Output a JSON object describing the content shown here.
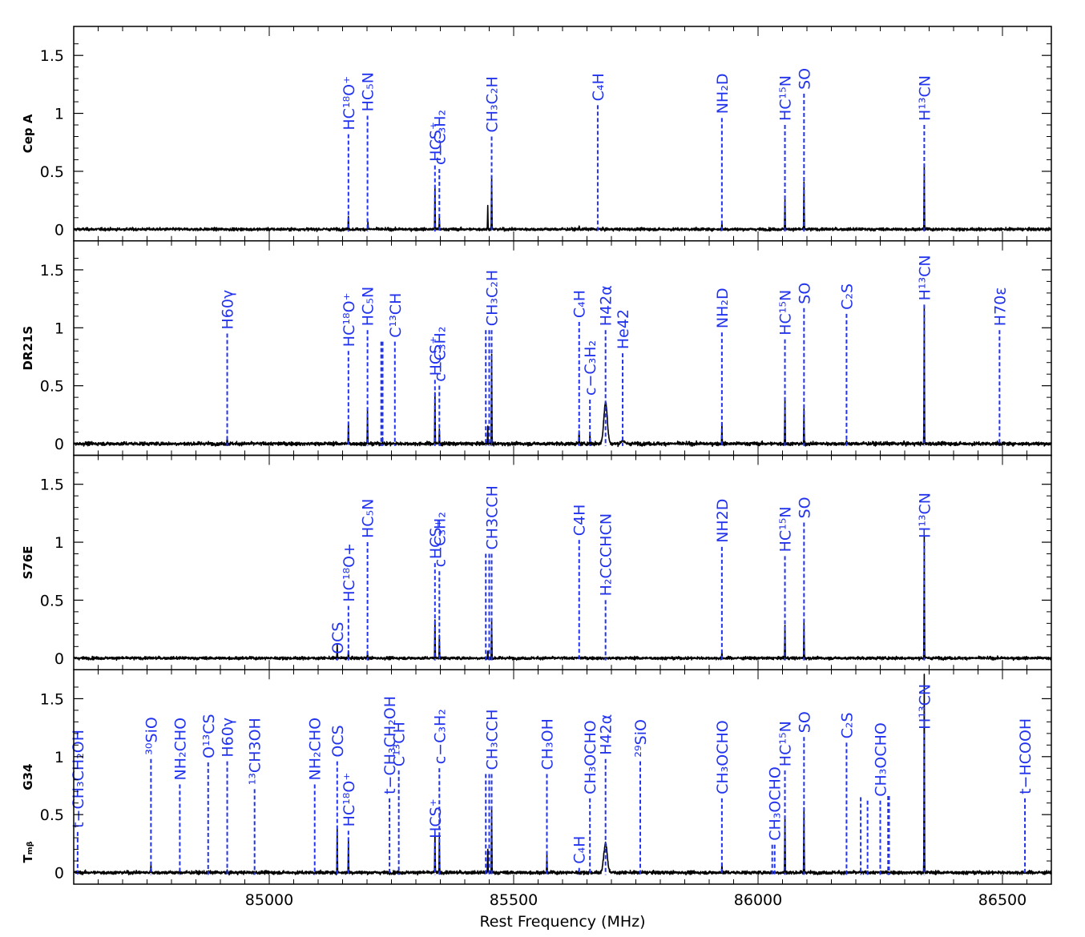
{
  "chart_data": {
    "type": "line",
    "xlabel": "Rest Frequency (MHz)",
    "xlim": [
      84600,
      86600
    ],
    "x_ticks": [
      85000,
      85500,
      86000,
      86500
    ],
    "ylim": [
      -0.1,
      1.75
    ],
    "y_ticks": [
      0,
      0.5,
      1,
      1.5
    ],
    "y_tick_labels": [
      "0",
      "0.5",
      "1",
      "1.5"
    ],
    "colors": {
      "spectrum": "#000000",
      "marker": "#2233ee",
      "frame": "#000000"
    },
    "grid": false,
    "panels": [
      {
        "name": "Cep A",
        "noise": 0.012,
        "peaks": [
          {
            "x": 85162,
            "y": 0.12
          },
          {
            "x": 85202,
            "y": 0.06
          },
          {
            "x": 85339,
            "y": 0.36
          },
          {
            "x": 85348,
            "y": 0.1
          },
          {
            "x": 85447,
            "y": 0.2
          },
          {
            "x": 85455,
            "y": 0.46
          },
          {
            "x": 85634,
            "y": 0.03
          },
          {
            "x": 85926,
            "y": 0.05
          },
          {
            "x": 86055,
            "y": 0.26
          },
          {
            "x": 86094,
            "y": 0.4
          },
          {
            "x": 86340,
            "y": 0.56
          }
        ],
        "markers": [
          {
            "x": 85162,
            "label": "HC¹⁸O⁺",
            "top": 0.82
          },
          {
            "x": 85201,
            "label": "HC₅N",
            "top": 0.98
          },
          {
            "x": 85339,
            "label": "HCS⁺",
            "top": 0.55
          },
          {
            "x": 85348,
            "label": "c−C₃H₂",
            "top": 0.52
          },
          {
            "x": 85455,
            "label": "CH₃C₂H",
            "top": 0.8
          },
          {
            "x": 85672,
            "label": "C₄H",
            "top": 1.07
          },
          {
            "x": 85926,
            "label": "NH₂D",
            "top": 0.96
          },
          {
            "x": 86055,
            "label": "HC¹⁵N",
            "top": 0.9
          },
          {
            "x": 86094,
            "label": "SO",
            "top": 1.17
          },
          {
            "x": 86340,
            "label": "H¹³CN",
            "top": 0.9
          }
        ]
      },
      {
        "name": "DR21S",
        "noise": 0.015,
        "peaks": [
          {
            "x": 84914,
            "y": 0.06
          },
          {
            "x": 85162,
            "y": 0.18
          },
          {
            "x": 85201,
            "y": 0.28
          },
          {
            "x": 85232,
            "y": 0.05
          },
          {
            "x": 85339,
            "y": 0.44
          },
          {
            "x": 85348,
            "y": 0.12
          },
          {
            "x": 85447,
            "y": 0.15
          },
          {
            "x": 85455,
            "y": 0.76
          },
          {
            "x": 85634,
            "y": 0.12
          },
          {
            "x": 85656,
            "y": 0.08
          },
          {
            "x": 85926,
            "y": 0.17
          },
          {
            "x": 86055,
            "y": 0.4
          },
          {
            "x": 86094,
            "y": 0.3
          },
          {
            "x": 86181,
            "y": 0.02
          },
          {
            "x": 86340,
            "y": 1.17
          }
        ],
        "broad": [
          {
            "x": 85688,
            "y": 0.36,
            "w": 5.0
          },
          {
            "x": 85723,
            "y": 0.03,
            "w": 4.0
          }
        ],
        "markers": [
          {
            "x": 84914,
            "label": "H60γ",
            "top": 0.95
          },
          {
            "x": 85162,
            "label": "HC¹⁸O⁺",
            "top": 0.8
          },
          {
            "x": 85201,
            "label": "HC₅N",
            "top": 0.98
          },
          {
            "x": 85229,
            "label": "",
            "top": 0.88
          },
          {
            "x": 85232,
            "label": "",
            "top": 0.88
          },
          {
            "x": 85257,
            "label": "C¹³CH",
            "top": 0.88
          },
          {
            "x": 85339,
            "label": "HCS⁺",
            "top": 0.55
          },
          {
            "x": 85348,
            "label": "c−C₃H₂",
            "top": 0.5
          },
          {
            "x": 85443,
            "label": "",
            "top": 0.98
          },
          {
            "x": 85450,
            "label": "",
            "top": 0.98
          },
          {
            "x": 85455,
            "label": "CH₃C₂H",
            "top": 0.98
          },
          {
            "x": 85634,
            "label": "C₄H",
            "top": 1.05
          },
          {
            "x": 85656,
            "label": "c−C₃H₂",
            "top": 0.38
          },
          {
            "x": 85688,
            "label": "H42α",
            "top": 0.98
          },
          {
            "x": 85723,
            "label": "He42",
            "top": 0.78
          },
          {
            "x": 85926,
            "label": "NH₂D",
            "top": 0.96
          },
          {
            "x": 86055,
            "label": "HC¹⁵N",
            "top": 0.9
          },
          {
            "x": 86094,
            "label": "SO",
            "top": 1.17
          },
          {
            "x": 86181,
            "label": "C₂S",
            "top": 1.12
          },
          {
            "x": 86340,
            "label": "H¹³CN",
            "top": 1.2
          },
          {
            "x": 86494,
            "label": "H70ε",
            "top": 0.98
          }
        ]
      },
      {
        "name": "S76E",
        "noise": 0.012,
        "peaks": [
          {
            "x": 85139,
            "y": 0.11
          },
          {
            "x": 85162,
            "y": 0.06
          },
          {
            "x": 85201,
            "y": 0.06
          },
          {
            "x": 85339,
            "y": 0.34
          },
          {
            "x": 85348,
            "y": 0.2
          },
          {
            "x": 85447,
            "y": 0.06
          },
          {
            "x": 85455,
            "y": 0.32
          },
          {
            "x": 85634,
            "y": 0.02
          },
          {
            "x": 85926,
            "y": 0.05
          },
          {
            "x": 86055,
            "y": 0.28
          },
          {
            "x": 86094,
            "y": 0.3
          },
          {
            "x": 86340,
            "y": 1.06
          }
        ],
        "markers": [
          {
            "x": 85162,
            "label": "HC¹⁸O+",
            "top": 0.45
          },
          {
            "x": 85139,
            "label": "OCS",
            "top": 0.0
          },
          {
            "x": 85201,
            "label": "HC₅N",
            "top": 1.0
          },
          {
            "x": 85339,
            "label": "HCS₊",
            "top": 0.82
          },
          {
            "x": 85348,
            "label": "c−C₃H₂",
            "top": 0.75
          },
          {
            "x": 85443,
            "label": "",
            "top": 0.9
          },
          {
            "x": 85450,
            "label": "",
            "top": 0.9
          },
          {
            "x": 85455,
            "label": "CH3CCH",
            "top": 0.9
          },
          {
            "x": 85634,
            "label": "C4H",
            "top": 1.02
          },
          {
            "x": 85688,
            "label": "H₂CCCHCN",
            "top": 0.5
          },
          {
            "x": 85926,
            "label": "NH2D",
            "top": 0.96
          },
          {
            "x": 86055,
            "label": "HC¹⁵N",
            "top": 0.88
          },
          {
            "x": 86094,
            "label": "SO",
            "top": 1.17
          },
          {
            "x": 86340,
            "label": "H¹³CN",
            "top": 1.0
          }
        ]
      },
      {
        "name": "G34",
        "ylabel": "Tₘᵦ",
        "noise": 0.014,
        "peaks": [
          {
            "x": 84758,
            "y": 0.08
          },
          {
            "x": 85139,
            "y": 0.38
          },
          {
            "x": 85162,
            "y": 0.27
          },
          {
            "x": 85339,
            "y": 0.35
          },
          {
            "x": 85348,
            "y": 0.3
          },
          {
            "x": 85447,
            "y": 0.2
          },
          {
            "x": 85455,
            "y": 0.56
          },
          {
            "x": 85568,
            "y": 0.15
          },
          {
            "x": 85926,
            "y": 0.08
          },
          {
            "x": 86055,
            "y": 0.48
          },
          {
            "x": 86094,
            "y": 0.56
          },
          {
            "x": 86340,
            "y": 1.72
          }
        ],
        "broad": [
          {
            "x": 85688,
            "y": 0.25,
            "w": 5.0
          }
        ],
        "markers": [
          {
            "x": 84608,
            "label": "t−CH₃CH₂OH",
            "top": 0.35
          },
          {
            "x": 84758,
            "label": "³⁰SiO",
            "top": 0.98
          },
          {
            "x": 84817,
            "label": "NH₂CHO",
            "top": 0.76
          },
          {
            "x": 84875,
            "label": "O¹³CS",
            "top": 0.95
          },
          {
            "x": 84914,
            "label": "H60γ",
            "top": 0.96
          },
          {
            "x": 84970,
            "label": "¹³CH3OH",
            "top": 0.72
          },
          {
            "x": 85093,
            "label": "NH₂CHO",
            "top": 0.76
          },
          {
            "x": 85139,
            "label": "OCS",
            "top": 0.96
          },
          {
            "x": 85162,
            "label": "HC¹⁸O⁺",
            "top": 0.36
          },
          {
            "x": 85246,
            "label": "t−CH₃CH₂OH",
            "top": 0.64
          },
          {
            "x": 85265,
            "label": "C¹³CH",
            "top": 0.88
          },
          {
            "x": 85339,
            "label": "HCS⁺",
            "top": 0.26
          },
          {
            "x": 85348,
            "label": "c−C₃H₂",
            "top": 0.9
          },
          {
            "x": 85443,
            "label": "",
            "top": 0.85
          },
          {
            "x": 85450,
            "label": "",
            "top": 0.85
          },
          {
            "x": 85455,
            "label": "CH₃CCH",
            "top": 0.85
          },
          {
            "x": 85568,
            "label": "CH₃OH",
            "top": 0.85
          },
          {
            "x": 85634,
            "label": "C₄H",
            "top": 0.04
          },
          {
            "x": 85656,
            "label": "CH₃OCHO",
            "top": 0.64
          },
          {
            "x": 85688,
            "label": "H42α",
            "top": 0.98
          },
          {
            "x": 85759,
            "label": "²⁹SiO",
            "top": 0.96
          },
          {
            "x": 85926,
            "label": "CH₃OCHO",
            "top": 0.64
          },
          {
            "x": 86029,
            "label": "",
            "top": 0.24
          },
          {
            "x": 86034,
            "label": "CH₃OCHO",
            "top": 0.24
          },
          {
            "x": 86055,
            "label": "HC¹⁵N",
            "top": 0.88
          },
          {
            "x": 86094,
            "label": "SO",
            "top": 1.17
          },
          {
            "x": 86181,
            "label": "C₂S",
            "top": 1.12
          },
          {
            "x": 86210,
            "label": "",
            "top": 0.65
          },
          {
            "x": 86224,
            "label": "",
            "top": 0.62
          },
          {
            "x": 86250,
            "label": "CH₃OCHO",
            "top": 0.62
          },
          {
            "x": 86266,
            "label": "",
            "top": 0.66
          },
          {
            "x": 86268,
            "label": "",
            "top": 0.66
          },
          {
            "x": 86340,
            "label": "H¹³CN",
            "top": 1.2
          },
          {
            "x": 86546,
            "label": "t−HCOOH",
            "top": 0.64
          }
        ]
      }
    ]
  }
}
